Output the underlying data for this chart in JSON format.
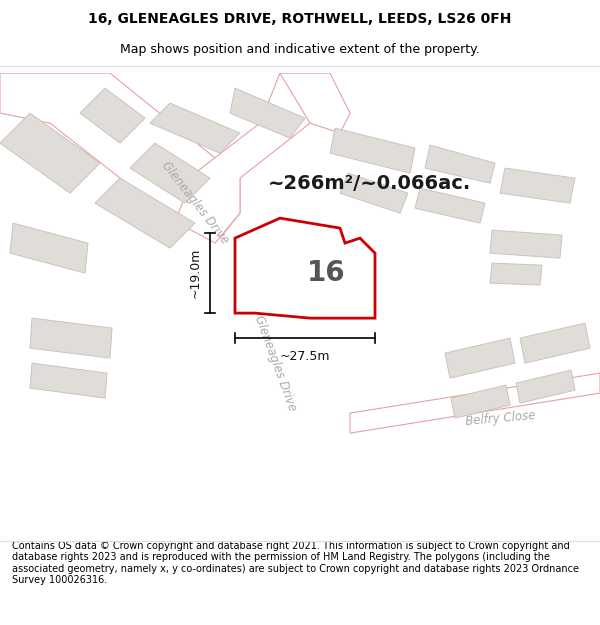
{
  "title_line1": "16, GLENEAGLES DRIVE, ROTHWELL, LEEDS, LS26 0FH",
  "title_line2": "Map shows position and indicative extent of the property.",
  "footer_text": "Contains OS data © Crown copyright and database right 2021. This information is subject to Crown copyright and database rights 2023 and is reproduced with the permission of HM Land Registry. The polygons (including the associated geometry, namely x, y co-ordinates) are subject to Crown copyright and database rights 2023 Ordnance Survey 100026316.",
  "map_bg": "#f5f3f1",
  "road_fill": "#ffffff",
  "road_edge": "#e8a0a0",
  "building_fill": "#e0ddd9",
  "building_edge": "#c8c4be",
  "plot_border_color": "#cc0000",
  "plot_fill": "#ffffff",
  "area_text": "~266m²/~0.066ac.",
  "plot_label": "16",
  "dim_width": "~27.5m",
  "dim_height": "~19.0m",
  "road_label_upper": "Gleneagles Drive",
  "road_label_lower": "Gleneagles Drive",
  "road_label_belfry": "Belfry Close",
  "title_fontsize": 10,
  "subtitle_fontsize": 9,
  "footer_fontsize": 7,
  "white_bg": "#ffffff",
  "area_fontsize": 14,
  "plot_label_fontsize": 20,
  "dim_fontsize": 9
}
